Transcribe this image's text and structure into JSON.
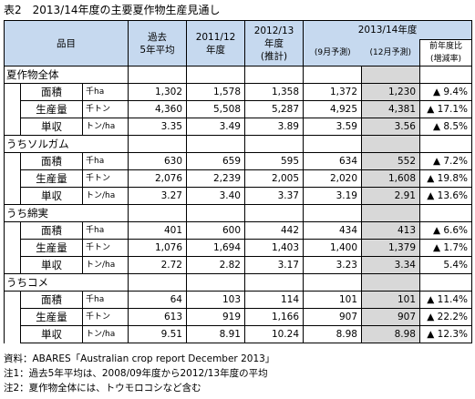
{
  "title": "表2　2013/14年度の主要夏作物生産見通し",
  "header": {
    "item": "品目",
    "past": [
      "過去",
      "5年平均"
    ],
    "y2011": [
      "2011/12",
      "年度"
    ],
    "y2012": [
      "2012/13",
      "年度",
      "(推計)"
    ],
    "y2013": "2013/14年度",
    "sep": "(9月予測)",
    "dec": "(12月予測)",
    "change": [
      "前年度比",
      "(増減率)"
    ]
  },
  "categories": [
    {
      "name": "夏作物全体",
      "rows": [
        {
          "metric": "面積",
          "unit": "千ha",
          "past": "1,302",
          "y2011": "1,578",
          "y2012": "1,358",
          "sep": "1,372",
          "dec": "1,230",
          "change": "▲ 9.4%"
        },
        {
          "metric": "生産量",
          "unit": "千トン",
          "past": "4,360",
          "y2011": "5,508",
          "y2012": "5,287",
          "sep": "4,925",
          "dec": "4,381",
          "change": "▲ 17.1%"
        },
        {
          "metric": "単収",
          "unit": "トン/ha",
          "past": "3.35",
          "y2011": "3.49",
          "y2012": "3.89",
          "sep": "3.59",
          "dec": "3.56",
          "change": "▲ 8.5%"
        }
      ]
    },
    {
      "name": "うちソルガム",
      "rows": [
        {
          "metric": "面積",
          "unit": "千ha",
          "past": "630",
          "y2011": "659",
          "y2012": "595",
          "sep": "634",
          "dec": "552",
          "change": "▲ 7.2%"
        },
        {
          "metric": "生産量",
          "unit": "千トン",
          "past": "2,076",
          "y2011": "2,239",
          "y2012": "2,005",
          "sep": "2,020",
          "dec": "1,608",
          "change": "▲ 19.8%"
        },
        {
          "metric": "単収",
          "unit": "トン/ha",
          "past": "3.27",
          "y2011": "3.40",
          "y2012": "3.37",
          "sep": "3.19",
          "dec": "2.91",
          "change": "▲ 13.6%"
        }
      ]
    },
    {
      "name": "うち綿実",
      "rows": [
        {
          "metric": "面積",
          "unit": "千ha",
          "past": "401",
          "y2011": "600",
          "y2012": "442",
          "sep": "434",
          "dec": "413",
          "change": "▲ 6.6%"
        },
        {
          "metric": "生産量",
          "unit": "千トン",
          "past": "1,076",
          "y2011": "1,694",
          "y2012": "1,403",
          "sep": "1,400",
          "dec": "1,379",
          "change": "▲ 1.7%"
        },
        {
          "metric": "単収",
          "unit": "トン/ha",
          "past": "2.72",
          "y2011": "2.82",
          "y2012": "3.17",
          "sep": "3.23",
          "dec": "3.34",
          "change": "5.4%"
        }
      ]
    },
    {
      "name": "うちコメ",
      "rows": [
        {
          "metric": "面積",
          "unit": "千ha",
          "past": "64",
          "y2011": "103",
          "y2012": "114",
          "sep": "101",
          "dec": "101",
          "change": "▲ 11.4%"
        },
        {
          "metric": "生産量",
          "unit": "千トン",
          "past": "613",
          "y2011": "919",
          "y2012": "1,166",
          "sep": "907",
          "dec": "907",
          "change": "▲ 22.2%"
        },
        {
          "metric": "単収",
          "unit": "トン/ha",
          "past": "9.51",
          "y2011": "8.91",
          "y2012": "10.24",
          "sep": "8.98",
          "dec": "8.98",
          "change": "▲ 12.3%"
        }
      ]
    }
  ],
  "notes": [
    "資料：ABARES「Australian crop report December 2013」",
    "注1：過去5年平均は、2008/09年度から2012/13年度の平均",
    "注2：夏作物全体には、トウモロコシなど含む"
  ]
}
